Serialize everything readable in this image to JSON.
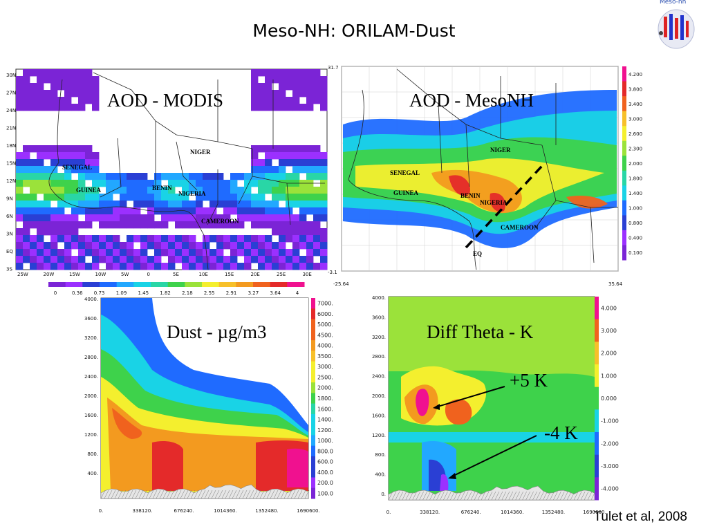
{
  "slide": {
    "title": "Meso-NH: ORILAM-Dust",
    "logo_text": "Meso-nh",
    "credit": "Tulet et al, 2008"
  },
  "colors": {
    "purple": "#7b24d6",
    "violet": "#9b30ff",
    "blue_dark": "#2a3fd4",
    "blue": "#1f6bff",
    "sky": "#22a8ff",
    "cyan": "#19d3e6",
    "teal": "#29d6a6",
    "green": "#3ed24b",
    "lightgreen": "#9be23a",
    "yellow": "#f4ef2e",
    "gold": "#f7c02a",
    "orange": "#f39a1f",
    "orangered": "#f0621e",
    "red": "#e42a2a",
    "magenta": "#f0118f"
  },
  "chart_data": [
    {
      "id": "aod-modis",
      "type": "heatmap",
      "title": "AOD - MODIS",
      "xlabels": [
        "25W",
        "20W",
        "15W",
        "10W",
        "5W",
        "0",
        "5E",
        "10E",
        "15E",
        "20E",
        "25E",
        "30E"
      ],
      "ylabels": [
        "30N",
        "27N",
        "24N",
        "21N",
        "18N",
        "15N",
        "12N",
        "9N",
        "6N",
        "3N",
        "EQ",
        "3S"
      ],
      "country_labels": [
        "NIGER",
        "SENEGAL",
        "GUINEA",
        "BENIN",
        "NIGERIA",
        "CAMEROON"
      ],
      "colorbar": {
        "labels": [
          "0",
          "0.36",
          "0.73",
          "1.09",
          "1.45",
          "1.82",
          "2.18",
          "2.55",
          "2.91",
          "3.27",
          "3.64",
          "4"
        ]
      }
    },
    {
      "id": "aod-mesonh",
      "type": "heatmap",
      "title": "AOD - MesoNH",
      "corner_labels": {
        "top": "31.7",
        "bottom": "-3.1",
        "left": "-25.64",
        "right": "35.64"
      },
      "country_labels": [
        "NIGER",
        "SENEGAL",
        "GUINEA",
        "BENIN",
        "NIGERIA",
        "CAMEROON"
      ],
      "eq_label": "EQ",
      "colorbar": {
        "labels": [
          "4.200",
          "3.800",
          "3.400",
          "3.000",
          "2.600",
          "2.300",
          "2.000",
          "1.800",
          "1.400",
          "1.000",
          "0.800",
          "0.400",
          "0.100"
        ]
      }
    },
    {
      "id": "dust-section",
      "type": "heatmap",
      "title": "Dust - µg/m3",
      "xlabels": [
        "0.",
        "338120.",
        "676240.",
        "1014360.",
        "1352480.",
        "1690600."
      ],
      "ylabels": [
        "4000.",
        "3600.",
        "3200.",
        "2800.",
        "2400.",
        "2000.",
        "1600.",
        "1200.",
        "800.",
        "400."
      ],
      "colorbar": {
        "labels": [
          "7000.",
          "6000.",
          "5000.",
          "4500.",
          "4000.",
          "3500.",
          "3000.",
          "2500.",
          "2000.",
          "1800.",
          "1600.",
          "1400.",
          "1200.",
          "1000.",
          "800.0",
          "600.0",
          "400.0",
          "200.0",
          "100.0"
        ]
      }
    },
    {
      "id": "theta-section",
      "type": "heatmap",
      "title": "Diff Theta - K",
      "annotations": [
        "+5 K",
        "-4 K"
      ],
      "xlabels": [
        "0.",
        "338120.",
        "676240.",
        "1014360.",
        "1352480.",
        "1690600."
      ],
      "ylabels": [
        "4000.",
        "3600.",
        "3200.",
        "2800.",
        "2400.",
        "2000.",
        "1600.",
        "1200.",
        "800.",
        "400.",
        "0."
      ],
      "colorbar": {
        "labels": [
          "4.000",
          "3.000",
          "2.000",
          "1.000",
          "0.000",
          "-1.000",
          "-2.000",
          "-3.000",
          "-4.000"
        ]
      }
    }
  ]
}
